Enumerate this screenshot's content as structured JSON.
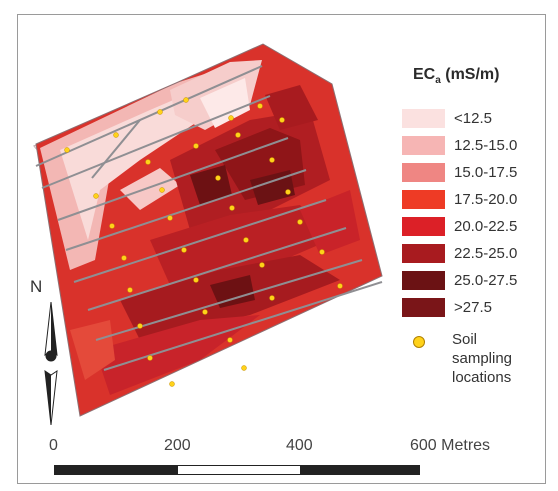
{
  "legend": {
    "title_main": "EC",
    "title_sub": "a",
    "title_unit": " (mS/m)",
    "classes": [
      {
        "label": "<12.5",
        "color": "#fbe1e0"
      },
      {
        "label": "12.5-15.0",
        "color": "#f6b5b4"
      },
      {
        "label": "15.0-17.5",
        "color": "#ef8683"
      },
      {
        "label": "17.5-20.0",
        "color": "#ee3b25"
      },
      {
        "label": "20.0-22.5",
        "color": "#dc2027"
      },
      {
        "label": "22.5-25.0",
        "color": "#a81b1f"
      },
      {
        "label": "25.0-27.5",
        "color": "#6b1214"
      },
      {
        "label": ">27.5",
        "color": "#7a1518"
      }
    ],
    "sample_label_lines": [
      "Soil",
      "sampling",
      "locations"
    ],
    "sample_color": "#ffd21a"
  },
  "north": {
    "label": "N"
  },
  "scale": {
    "ticks": [
      "0",
      "200",
      "400",
      "600 Metres"
    ],
    "segment_colors": [
      "#222222",
      "#ffffff",
      "#222222"
    ]
  }
}
